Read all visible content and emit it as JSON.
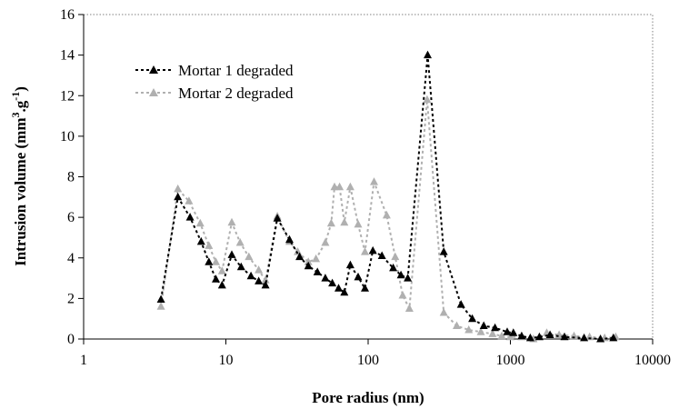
{
  "chart_data": {
    "type": "line",
    "x_scale": "log",
    "xlim": [
      1,
      10000
    ],
    "ylim": [
      0,
      16
    ],
    "x_ticks": [
      "1",
      "10",
      "100",
      "1000",
      "10000"
    ],
    "y_ticks": [
      "0",
      "2",
      "4",
      "6",
      "8",
      "10",
      "12",
      "14",
      "16"
    ],
    "xlabel": "Pore radius (nm)",
    "ylabel_main": "Intrusion volume (mm",
    "ylabel_sup1": "3",
    "ylabel_mid": ".g",
    "ylabel_sup2": "-1",
    "ylabel_end": ")",
    "legend_position": "top-left",
    "grid": false,
    "series": [
      {
        "name": "Mortar 1 degraded",
        "color": "#000000",
        "marker": "triangle",
        "points": [
          [
            3.5,
            1.95
          ],
          [
            4.6,
            7.0
          ],
          [
            5.6,
            6.0
          ],
          [
            6.7,
            4.8
          ],
          [
            7.6,
            3.8
          ],
          [
            8.5,
            2.95
          ],
          [
            9.4,
            2.65
          ],
          [
            11.0,
            4.15
          ],
          [
            12.8,
            3.55
          ],
          [
            15.0,
            3.1
          ],
          [
            17.0,
            2.85
          ],
          [
            19.0,
            2.65
          ],
          [
            23.0,
            5.95
          ],
          [
            28.0,
            4.9
          ],
          [
            33.0,
            4.05
          ],
          [
            38.0,
            3.6
          ],
          [
            44.0,
            3.3
          ],
          [
            50.0,
            3.0
          ],
          [
            56.0,
            2.75
          ],
          [
            62.0,
            2.5
          ],
          [
            68.0,
            2.3
          ],
          [
            75.0,
            3.65
          ],
          [
            85.0,
            3.05
          ],
          [
            95.0,
            2.5
          ],
          [
            108.0,
            4.35
          ],
          [
            125.0,
            4.1
          ],
          [
            150.0,
            3.5
          ],
          [
            170.0,
            3.15
          ],
          [
            190.0,
            3.0
          ],
          [
            262.0,
            14.0
          ],
          [
            340.0,
            4.3
          ],
          [
            450.0,
            1.7
          ],
          [
            540.0,
            1.0
          ],
          [
            650.0,
            0.65
          ],
          [
            780.0,
            0.55
          ],
          [
            950.0,
            0.35
          ],
          [
            1050.0,
            0.3
          ],
          [
            1200.0,
            0.15
          ],
          [
            1380.0,
            0.05
          ],
          [
            1600.0,
            0.1
          ],
          [
            1900.0,
            0.2
          ],
          [
            2400.0,
            0.1
          ],
          [
            3300.0,
            0.05
          ],
          [
            4300.0,
            0.0
          ],
          [
            5300.0,
            0.05
          ]
        ]
      },
      {
        "name": "Mortar 2 degraded",
        "color": "#b0b0b0",
        "marker": "triangle",
        "points": [
          [
            3.5,
            1.6
          ],
          [
            4.6,
            7.4
          ],
          [
            5.5,
            6.8
          ],
          [
            6.6,
            5.7
          ],
          [
            7.6,
            4.6
          ],
          [
            8.5,
            3.8
          ],
          [
            9.4,
            3.35
          ],
          [
            11.0,
            5.75
          ],
          [
            12.6,
            4.75
          ],
          [
            14.5,
            4.05
          ],
          [
            17.0,
            3.4
          ],
          [
            19.0,
            2.9
          ],
          [
            23.0,
            6.05
          ],
          [
            28.0,
            4.8
          ],
          [
            32.0,
            4.3
          ],
          [
            38.0,
            3.8
          ],
          [
            43.0,
            3.95
          ],
          [
            50.0,
            4.75
          ],
          [
            55.0,
            5.7
          ],
          [
            58.0,
            7.5
          ],
          [
            63.0,
            7.5
          ],
          [
            68.0,
            5.75
          ],
          [
            75.0,
            7.5
          ],
          [
            85.0,
            5.65
          ],
          [
            95.0,
            4.3
          ],
          [
            110.0,
            7.75
          ],
          [
            135.0,
            6.1
          ],
          [
            155.0,
            4.05
          ],
          [
            175.0,
            2.15
          ],
          [
            195.0,
            1.5
          ],
          [
            260.0,
            11.8
          ],
          [
            340.0,
            1.3
          ],
          [
            420.0,
            0.65
          ],
          [
            510.0,
            0.45
          ],
          [
            620.0,
            0.35
          ],
          [
            750.0,
            0.25
          ],
          [
            870.0,
            0.15
          ],
          [
            1000.0,
            0.1
          ],
          [
            1200.0,
            0.1
          ],
          [
            1450.0,
            0.0
          ],
          [
            1800.0,
            0.3
          ],
          [
            2200.0,
            0.2
          ],
          [
            2800.0,
            0.15
          ],
          [
            3600.0,
            0.1
          ],
          [
            4600.0,
            0.05
          ],
          [
            5500.0,
            0.1
          ]
        ]
      }
    ]
  }
}
